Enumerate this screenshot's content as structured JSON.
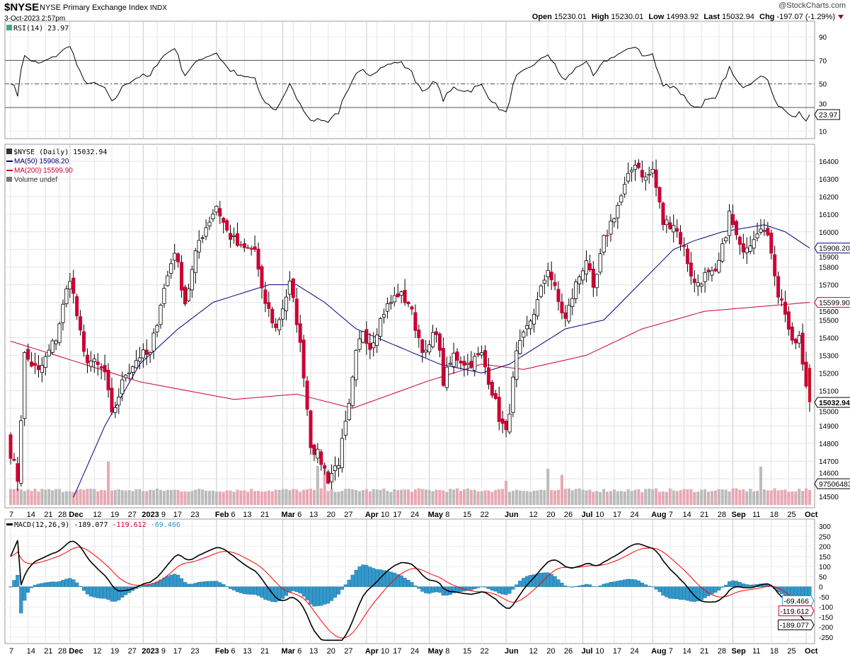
{
  "header": {
    "symbol": "$NYSE",
    "name": "NYSE Primary Exchange Index",
    "exchange": "INDX",
    "datetime": "3-Oct-2023 2:57pm",
    "brand": "@StockCharts.com",
    "open_label": "Open",
    "open": "15230.01",
    "high_label": "High",
    "high": "15230.01",
    "low_label": "Low",
    "low": "14993.92",
    "last_label": "Last",
    "last": "15032.94",
    "chg_label": "Chg",
    "chg": "-197.07 (-1.29%)",
    "down_color": "#990033"
  },
  "chart_data": [
    {
      "type": "line",
      "title": "RSI(14) 23.97",
      "legend": "RSI(14) 23.97",
      "yticks": [
        90,
        70,
        50,
        30,
        10
      ],
      "ylim": [
        0,
        100
      ],
      "levels": [
        70,
        50,
        30
      ],
      "last_value": "23.97"
    },
    {
      "type": "candlestick",
      "title": "$NYSE (Daily) 15032.94",
      "legend": [
        "$NYSE (Daily) 15032.94",
        "MA(50) 15908.20",
        "MA(200) 15599.90",
        "Volume undef"
      ],
      "ylim": [
        14450,
        16480
      ],
      "yticks": [
        16400,
        16300,
        16200,
        16100,
        16000,
        15900,
        15800,
        15700,
        15600,
        15500,
        15400,
        15300,
        15200,
        15100,
        15000,
        14900,
        14800,
        14700,
        14600,
        14500
      ],
      "days": 230,
      "close_waypoints": [
        [
          0,
          14750
        ],
        [
          2,
          14600
        ],
        [
          4,
          15300
        ],
        [
          8,
          15200
        ],
        [
          13,
          15400
        ],
        [
          17,
          15750
        ],
        [
          21,
          15300
        ],
        [
          27,
          15200
        ],
        [
          29,
          14950
        ],
        [
          33,
          15200
        ],
        [
          37,
          15300
        ],
        [
          40,
          15300
        ],
        [
          43,
          15600
        ],
        [
          47,
          15900
        ],
        [
          50,
          15600
        ],
        [
          54,
          15950
        ],
        [
          59,
          16150
        ],
        [
          62,
          16000
        ],
        [
          66,
          15900
        ],
        [
          70,
          15900
        ],
        [
          72,
          15650
        ],
        [
          76,
          15450
        ],
        [
          80,
          15700
        ],
        [
          82,
          15500
        ],
        [
          84,
          15200
        ],
        [
          86,
          14800
        ],
        [
          89,
          14700
        ],
        [
          91,
          14600
        ],
        [
          94,
          14700
        ],
        [
          97,
          15000
        ],
        [
          99,
          15300
        ],
        [
          101,
          15450
        ],
        [
          103,
          15350
        ],
        [
          107,
          15550
        ],
        [
          111,
          15650
        ],
        [
          114,
          15600
        ],
        [
          117,
          15400
        ],
        [
          119,
          15300
        ],
        [
          122,
          15450
        ],
        [
          124,
          15150
        ],
        [
          127,
          15300
        ],
        [
          131,
          15250
        ],
        [
          135,
          15300
        ],
        [
          138,
          15100
        ],
        [
          140,
          14950
        ],
        [
          142,
          14850
        ],
        [
          145,
          15300
        ],
        [
          148,
          15450
        ],
        [
          151,
          15600
        ],
        [
          154,
          15800
        ],
        [
          157,
          15600
        ],
        [
          159,
          15500
        ],
        [
          162,
          15700
        ],
        [
          165,
          15850
        ],
        [
          167,
          15650
        ],
        [
          170,
          15950
        ],
        [
          173,
          16100
        ],
        [
          176,
          16250
        ],
        [
          179,
          16400
        ],
        [
          182,
          16300
        ],
        [
          184,
          16350
        ],
        [
          187,
          16050
        ],
        [
          190,
          16050
        ],
        [
          193,
          15900
        ],
        [
          196,
          15700
        ],
        [
          199,
          15750
        ],
        [
          202,
          15750
        ],
        [
          204,
          15900
        ],
        [
          206,
          16100
        ],
        [
          209,
          15900
        ],
        [
          212,
          15950
        ],
        [
          215,
          16050
        ],
        [
          218,
          15900
        ],
        [
          220,
          15650
        ],
        [
          222,
          15550
        ],
        [
          224,
          15350
        ],
        [
          226,
          15400
        ],
        [
          227,
          15230
        ],
        [
          229,
          15033
        ]
      ],
      "ma50": {
        "label": "MA(50) 15908.20",
        "last": "15908.20",
        "color": "#000080",
        "waypoints": [
          [
            17,
            14450
          ],
          [
            27,
            14900
          ],
          [
            37,
            15250
          ],
          [
            48,
            15450
          ],
          [
            58,
            15600
          ],
          [
            74,
            15700
          ],
          [
            82,
            15700
          ],
          [
            90,
            15600
          ],
          [
            99,
            15450
          ],
          [
            111,
            15350
          ],
          [
            123,
            15250
          ],
          [
            135,
            15200
          ],
          [
            143,
            15250
          ],
          [
            151,
            15350
          ],
          [
            159,
            15450
          ],
          [
            170,
            15500
          ],
          [
            180,
            15700
          ],
          [
            190,
            15900
          ],
          [
            196,
            15950
          ],
          [
            204,
            16000
          ],
          [
            216,
            16040
          ],
          [
            222,
            16000
          ],
          [
            229,
            15908
          ]
        ]
      },
      "ma200": {
        "label": "MA(200) 15599.90",
        "last": "15599.90",
        "color": "#cc0033",
        "waypoints": [
          [
            0,
            15380
          ],
          [
            13,
            15300
          ],
          [
            37,
            15150
          ],
          [
            64,
            15050
          ],
          [
            82,
            15080
          ],
          [
            98,
            15000
          ],
          [
            119,
            15150
          ],
          [
            135,
            15250
          ],
          [
            147,
            15220
          ],
          [
            165,
            15300
          ],
          [
            181,
            15450
          ],
          [
            199,
            15550
          ],
          [
            229,
            15600
          ]
        ]
      },
      "volume": {
        "label": "Volume undef",
        "last": "97506483",
        "spike_days": [
          [
            28,
            0.95
          ],
          [
            88,
            0.85
          ],
          [
            90,
            0.85
          ],
          [
            142,
            0.5
          ],
          [
            154,
            0.78
          ],
          [
            158,
            0.64
          ],
          [
            215,
            0.83
          ]
        ]
      },
      "last_label": "15032.94"
    },
    {
      "type": "line",
      "title": "MACD(12,26,9)",
      "legend": {
        "name": "MACD(12,26,9)",
        "macd": "-189.077",
        "signal": "-119.612",
        "hist": "-69.466"
      },
      "ylim": [
        -270,
        320
      ],
      "yticks": [
        300,
        250,
        200,
        150,
        100,
        50,
        0,
        -50,
        -100,
        -150,
        -200,
        -250
      ],
      "colors": {
        "macd": "#000000",
        "signal": "#ff0000",
        "hist": "#3399cc"
      }
    }
  ],
  "xaxis": {
    "labels": [
      {
        "t": "7",
        "d": 0
      },
      {
        "t": "14",
        "d": 5
      },
      {
        "t": "21",
        "d": 10
      },
      {
        "t": "28",
        "d": 14
      },
      {
        "t": "Dec",
        "d": 17,
        "b": 1
      },
      {
        "t": "12",
        "d": 24
      },
      {
        "t": "19",
        "d": 29
      },
      {
        "t": "27",
        "d": 34
      },
      {
        "t": "2023",
        "d": 38,
        "b": 1
      },
      {
        "t": "9",
        "d": 42
      },
      {
        "t": "17",
        "d": 47
      },
      {
        "t": "23",
        "d": 52
      },
      {
        "t": "Feb",
        "d": 59,
        "b": 1
      },
      {
        "t": "6",
        "d": 62
      },
      {
        "t": "13",
        "d": 67
      },
      {
        "t": "21",
        "d": 72
      },
      {
        "t": "Mar",
        "d": 78,
        "b": 1
      },
      {
        "t": "6",
        "d": 81
      },
      {
        "t": "13",
        "d": 86
      },
      {
        "t": "20",
        "d": 91
      },
      {
        "t": "27",
        "d": 96
      },
      {
        "t": "Apr",
        "d": 102,
        "b": 1
      },
      {
        "t": "10",
        "d": 105
      },
      {
        "t": "17",
        "d": 110
      },
      {
        "t": "24",
        "d": 115
      },
      {
        "t": "May",
        "d": 120,
        "b": 1
      },
      {
        "t": "8",
        "d": 125
      },
      {
        "t": "15",
        "d": 130
      },
      {
        "t": "22",
        "d": 135
      },
      {
        "t": "Jun",
        "d": 142,
        "b": 1
      },
      {
        "t": "12",
        "d": 149
      },
      {
        "t": "20",
        "d": 154
      },
      {
        "t": "26",
        "d": 159
      },
      {
        "t": "Jul",
        "d": 164,
        "b": 1
      },
      {
        "t": "10",
        "d": 168
      },
      {
        "t": "17",
        "d": 173
      },
      {
        "t": "24",
        "d": 178
      },
      {
        "t": "Aug",
        "d": 184,
        "b": 1
      },
      {
        "t": "7",
        "d": 189
      },
      {
        "t": "14",
        "d": 193
      },
      {
        "t": "21",
        "d": 198
      },
      {
        "t": "28",
        "d": 203
      },
      {
        "t": "Sep",
        "d": 207,
        "b": 1
      },
      {
        "t": "11",
        "d": 213
      },
      {
        "t": "18",
        "d": 218
      },
      {
        "t": "25",
        "d": 223
      },
      {
        "t": "Oct",
        "d": 228,
        "b": 1
      }
    ]
  }
}
